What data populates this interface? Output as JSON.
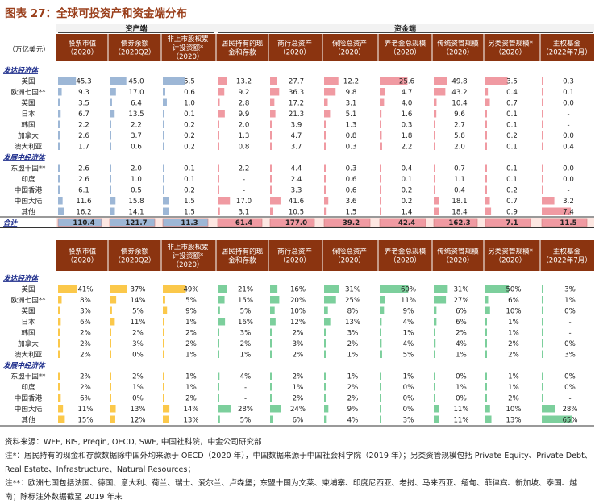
{
  "title": "图表 27：全球可投资产和资金端分布",
  "unit_label": "（万亿美元）",
  "group_asset": "资产端",
  "group_fund": "资金端",
  "columns": [
    {
      "name": "股票市值",
      "sub": "（2020）"
    },
    {
      "name": "债券余额",
      "sub": "（2020Q2）"
    },
    {
      "name": "非上市股权累计投资额*",
      "sub": "（2020）"
    },
    {
      "name": "居民持有的现金和存款",
      "sub": ""
    },
    {
      "name": "商行总资产",
      "sub": "（2020）"
    },
    {
      "name": "保险总资产",
      "sub": "（2020）"
    },
    {
      "name": "养老金总规模",
      "sub": "（2020）"
    },
    {
      "name": "传统资管规模",
      "sub": "（2020）"
    },
    {
      "name": "另类资管规模*",
      "sub": "（2020）"
    },
    {
      "name": "主权基金",
      "sub": "（2022年7月）"
    }
  ],
  "header_lines": [
    [
      "股票市值",
      "（2020）"
    ],
    [
      "债券余额",
      "（2020Q2）"
    ],
    [
      "非上市股权累",
      "计投资额*",
      "（2020）"
    ],
    [
      "居民持有的现",
      "金和存款"
    ],
    [
      "商行总资产",
      "（2020）"
    ],
    [
      "保险总资产",
      "（2020）"
    ],
    [
      "养老金总规模",
      "（2020）"
    ],
    [
      "传统资管规模",
      "（2020）"
    ],
    [
      "另类资管规模*",
      "（2020）"
    ],
    [
      "主权基金",
      "（2022年7月）"
    ]
  ],
  "chart_data": [
    {
      "type": "table",
      "title": "",
      "unit": "万亿美元",
      "rows": [
        {
          "label": "发达经济体",
          "kind": "section"
        },
        {
          "label": "美国",
          "values": [
            "45.3",
            "45.0",
            "5.5",
            "13.2",
            "27.7",
            "12.2",
            "25.6",
            "49.8",
            "3.5",
            "0.3"
          ]
        },
        {
          "label": "欧洲七国**",
          "values": [
            "9.3",
            "17.0",
            "0.6",
            "9.2",
            "36.3",
            "9.8",
            "4.7",
            "43.2",
            "0.4",
            "0.1"
          ]
        },
        {
          "label": "英国",
          "values": [
            "3.5",
            "6.4",
            "1.0",
            "2.8",
            "17.2",
            "3.1",
            "4.0",
            "10.4",
            "0.7",
            "0.0"
          ]
        },
        {
          "label": "日本",
          "values": [
            "6.7",
            "13.5",
            "0.1",
            "9.9",
            "21.3",
            "5.1",
            "1.6",
            "9.6",
            "0.1",
            "-"
          ]
        },
        {
          "label": "韩国",
          "values": [
            "2.2",
            "2.2",
            "0.2",
            "2.0",
            "3.9",
            "1.3",
            "0.3",
            "2.7",
            "0.1",
            "-"
          ]
        },
        {
          "label": "加拿大",
          "values": [
            "2.6",
            "3.7",
            "0.2",
            "1.3",
            "4.7",
            "0.8",
            "1.8",
            "5.8",
            "0.2",
            "0.0"
          ]
        },
        {
          "label": "澳大利亚",
          "values": [
            "1.7",
            "0.6",
            "0.2",
            "0.8",
            "3.7",
            "0.3",
            "2.2",
            "2.0",
            "0.1",
            "0.4"
          ]
        },
        {
          "label": "发展中经济体",
          "kind": "section"
        },
        {
          "label": "东盟十国**",
          "values": [
            "2.6",
            "2.0",
            "0.1",
            "2.2",
            "4.4",
            "0.3",
            "0.4",
            "0.7",
            "0.1",
            "0.0"
          ]
        },
        {
          "label": "印度",
          "values": [
            "2.6",
            "1.0",
            "0.1",
            "-",
            "2.4",
            "0.6",
            "0.1",
            "1.1",
            "0.1",
            "0.0"
          ]
        },
        {
          "label": "中国香港",
          "values": [
            "6.1",
            "0.5",
            "0.2",
            "-",
            "3.3",
            "0.6",
            "0.2",
            "0.4",
            "0.2",
            "-"
          ]
        },
        {
          "label": "中国大陆",
          "values": [
            "11.6",
            "15.8",
            "1.5",
            "17.0",
            "41.6",
            "3.6",
            "0.2",
            "18.1",
            "0.7",
            "3.2"
          ]
        },
        {
          "label": "其他",
          "values": [
            "16.2",
            "14.1",
            "1.5",
            "3.1",
            "10.5",
            "1.5",
            "1.4",
            "18.4",
            "0.9",
            "7.4"
          ]
        },
        {
          "label": "合计",
          "kind": "total",
          "values": [
            "110.4",
            "121.7",
            "11.3",
            "61.4",
            "177.0",
            "39.2",
            "42.4",
            "162.3",
            "7.1",
            "11.5"
          ]
        }
      ]
    },
    {
      "type": "table",
      "title": "",
      "unit": "%",
      "rows": [
        {
          "label": "发达经济体",
          "kind": "section"
        },
        {
          "label": "美国",
          "values": [
            41,
            37,
            49,
            21,
            16,
            31,
            60,
            31,
            50,
            3
          ]
        },
        {
          "label": "欧洲七国**",
          "values": [
            8,
            14,
            5,
            15,
            20,
            25,
            11,
            27,
            6,
            1
          ]
        },
        {
          "label": "英国",
          "values": [
            3,
            5,
            9,
            5,
            10,
            8,
            9,
            6,
            10,
            0
          ]
        },
        {
          "label": "日本",
          "values": [
            6,
            11,
            1,
            16,
            12,
            13,
            4,
            6,
            1,
            null
          ]
        },
        {
          "label": "韩国",
          "values": [
            2,
            2,
            2,
            3,
            2,
            3,
            1,
            2,
            1,
            null
          ]
        },
        {
          "label": "加拿大",
          "values": [
            2,
            3,
            2,
            2,
            3,
            2,
            4,
            4,
            2,
            0
          ]
        },
        {
          "label": "澳大利亚",
          "values": [
            2,
            0,
            1,
            1,
            2,
            1,
            5,
            1,
            2,
            3
          ]
        },
        {
          "label": "发展中经济体",
          "kind": "section"
        },
        {
          "label": "东盟十国**",
          "values": [
            2,
            2,
            1,
            4,
            2,
            1,
            1,
            0,
            1,
            0
          ]
        },
        {
          "label": "印度",
          "values": [
            2,
            1,
            1,
            null,
            1,
            2,
            0,
            1,
            1,
            0
          ]
        },
        {
          "label": "中国香港",
          "values": [
            6,
            0,
            2,
            null,
            2,
            2,
            0,
            0,
            2,
            null
          ]
        },
        {
          "label": "中国大陆",
          "values": [
            11,
            13,
            14,
            28,
            24,
            9,
            0,
            11,
            10,
            28
          ]
        },
        {
          "label": "其他",
          "values": [
            15,
            12,
            13,
            5,
            6,
            4,
            3,
            11,
            13,
            65
          ]
        }
      ]
    }
  ],
  "colors": {
    "title": "#9a3f1b",
    "header_bg": "#8b3410",
    "header_text": "#ffffff",
    "group_label_bg": "#f2f2f2",
    "section_label": "#1a2a8a",
    "bar_asset_top": "#9db7d6",
    "bar_fund_top": "#f09aa2",
    "bar_asset_bottom": "#fbc84a",
    "bar_fund_bottom": "#7ccf9c",
    "total_row_bg": "#fde7e2"
  },
  "notes": [
    "资料来源：WFE, BIS, Preqin, OECD, SWF, 中国社科院，中金公司研究部",
    "注*：居民持有的现金和存款数据除中国外均来源于 OECD（2020 年），中国数据来源于中国社会科学院（2019 年）；另类资管规模包括 Private Equity、Private Debt、",
    "Real Estate、Infrastructure、Natural Resources；",
    "注**：欧洲七国包括法国、德国、意大利、荷兰、瑞士、爱尔兰、卢森堡；东盟十国为文莱、柬埔寨、印度尼西亚、老挝、马来西亚、缅甸、菲律宾、新加坡、泰国、越",
    "南；除标注外数据截至 2019 年末"
  ]
}
